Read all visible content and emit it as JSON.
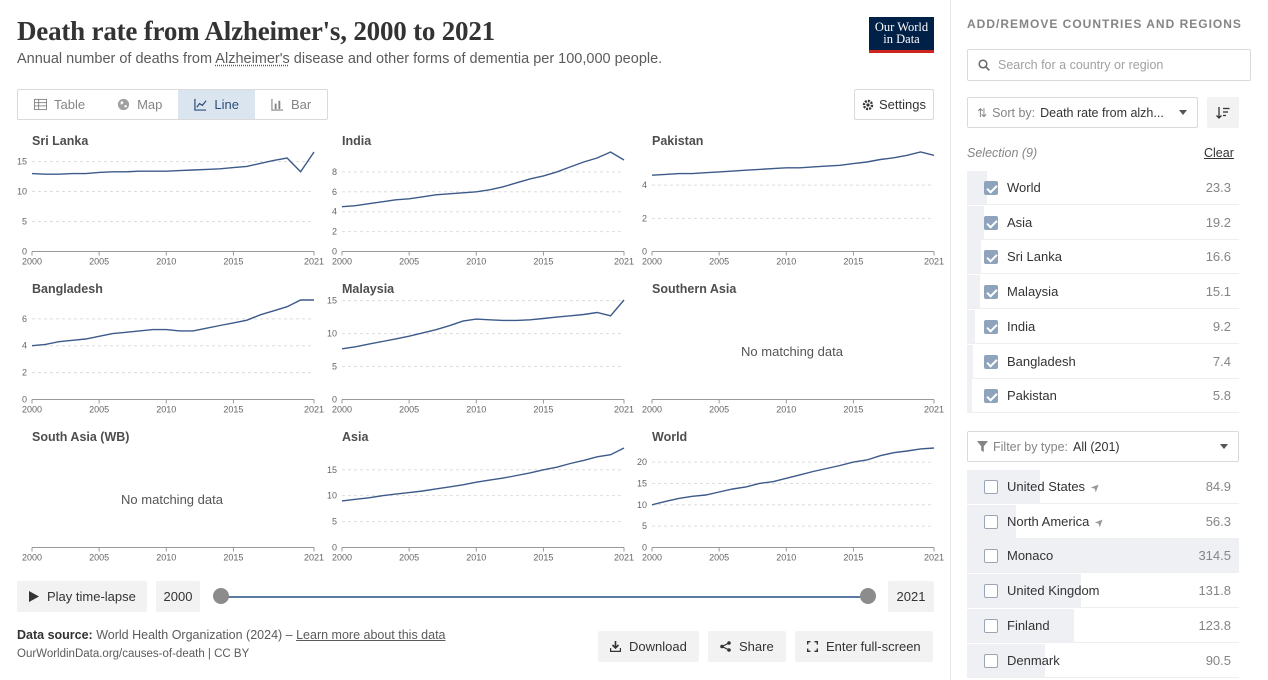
{
  "header": {
    "title": "Death rate from Alzheimer's, 2000 to 2021",
    "subtitle_pre": "Annual number of deaths from ",
    "subtitle_link": "Alzheimer's",
    "subtitle_post": " disease and other forms of dementia per 100,000 people.",
    "logo_line1": "Our World",
    "logo_line2": "in Data"
  },
  "tabs": [
    {
      "label": "Table",
      "icon": "table-icon"
    },
    {
      "label": "Map",
      "icon": "globe-icon"
    },
    {
      "label": "Line",
      "icon": "line-chart-icon",
      "active": true
    },
    {
      "label": "Bar",
      "icon": "bar-chart-icon"
    }
  ],
  "settings_label": "Settings",
  "no_data_text": "No matching data",
  "chart_data": [
    {
      "type": "line",
      "title": "Sri Lanka",
      "x": [
        2000,
        2001,
        2002,
        2003,
        2004,
        2005,
        2006,
        2007,
        2008,
        2009,
        2010,
        2011,
        2012,
        2013,
        2014,
        2015,
        2016,
        2017,
        2018,
        2019,
        2020,
        2021
      ],
      "values": [
        13.0,
        12.9,
        12.9,
        13.0,
        13.0,
        13.2,
        13.3,
        13.3,
        13.4,
        13.4,
        13.4,
        13.5,
        13.6,
        13.7,
        13.8,
        14.0,
        14.2,
        14.7,
        15.2,
        15.6,
        13.3,
        16.6
      ],
      "yticks": [
        0,
        5,
        10,
        15
      ],
      "ylim": [
        0,
        16.6
      ],
      "xticks": [
        2000,
        2005,
        2010,
        2015,
        2021
      ]
    },
    {
      "type": "line",
      "title": "India",
      "x": [
        2000,
        2001,
        2002,
        2003,
        2004,
        2005,
        2006,
        2007,
        2008,
        2009,
        2010,
        2011,
        2012,
        2013,
        2014,
        2015,
        2016,
        2017,
        2018,
        2019,
        2020,
        2021
      ],
      "values": [
        4.5,
        4.6,
        4.8,
        5.0,
        5.2,
        5.3,
        5.5,
        5.7,
        5.8,
        5.9,
        6.0,
        6.2,
        6.5,
        6.9,
        7.3,
        7.6,
        8.0,
        8.5,
        9.0,
        9.4,
        10.0,
        9.2
      ],
      "yticks": [
        0,
        2,
        4,
        6,
        8
      ],
      "ylim": [
        0,
        10.0
      ],
      "xticks": [
        2000,
        2005,
        2010,
        2015,
        2021
      ]
    },
    {
      "type": "line",
      "title": "Pakistan",
      "x": [
        2000,
        2001,
        2002,
        2003,
        2004,
        2005,
        2006,
        2007,
        2008,
        2009,
        2010,
        2011,
        2012,
        2013,
        2014,
        2015,
        2016,
        2017,
        2018,
        2019,
        2020,
        2021
      ],
      "values": [
        4.6,
        4.65,
        4.7,
        4.7,
        4.75,
        4.8,
        4.85,
        4.9,
        4.95,
        5.0,
        5.05,
        5.05,
        5.1,
        5.15,
        5.2,
        5.3,
        5.4,
        5.55,
        5.65,
        5.8,
        6.0,
        5.8
      ],
      "yticks": [
        0,
        2,
        4
      ],
      "ylim": [
        0,
        6.0
      ],
      "xticks": [
        2000,
        2005,
        2010,
        2015,
        2021
      ]
    },
    {
      "type": "line",
      "title": "Bangladesh",
      "x": [
        2000,
        2001,
        2002,
        2003,
        2004,
        2005,
        2006,
        2007,
        2008,
        2009,
        2010,
        2011,
        2012,
        2013,
        2014,
        2015,
        2016,
        2017,
        2018,
        2019,
        2020,
        2021
      ],
      "values": [
        4.0,
        4.1,
        4.3,
        4.4,
        4.5,
        4.7,
        4.9,
        5.0,
        5.1,
        5.2,
        5.2,
        5.1,
        5.1,
        5.3,
        5.5,
        5.7,
        5.9,
        6.3,
        6.6,
        6.9,
        7.4,
        7.4
      ],
      "yticks": [
        0,
        2,
        4,
        6
      ],
      "ylim": [
        0,
        7.4
      ],
      "xticks": [
        2000,
        2005,
        2010,
        2015,
        2021
      ]
    },
    {
      "type": "line",
      "title": "Malaysia",
      "x": [
        2000,
        2001,
        2002,
        2003,
        2004,
        2005,
        2006,
        2007,
        2008,
        2009,
        2010,
        2011,
        2012,
        2013,
        2014,
        2015,
        2016,
        2017,
        2018,
        2019,
        2020,
        2021
      ],
      "values": [
        7.7,
        8.0,
        8.4,
        8.8,
        9.2,
        9.6,
        10.1,
        10.6,
        11.2,
        11.9,
        12.2,
        12.1,
        12.0,
        12.0,
        12.1,
        12.3,
        12.5,
        12.7,
        12.9,
        13.2,
        12.7,
        15.1
      ],
      "yticks": [
        0,
        5,
        10,
        15
      ],
      "ylim": [
        0,
        15.1
      ],
      "xticks": [
        2000,
        2005,
        2010,
        2015,
        2021
      ]
    },
    {
      "type": "line",
      "title": "Southern Asia",
      "x": [],
      "values": [],
      "no_data": true,
      "xticks": [
        2000,
        2005,
        2010,
        2015,
        2021
      ]
    },
    {
      "type": "line",
      "title": "South Asia (WB)",
      "x": [],
      "values": [],
      "no_data": true,
      "xticks": [
        2000,
        2005,
        2010,
        2015,
        2021
      ]
    },
    {
      "type": "line",
      "title": "Asia",
      "x": [
        2000,
        2001,
        2002,
        2003,
        2004,
        2005,
        2006,
        2007,
        2008,
        2009,
        2010,
        2011,
        2012,
        2013,
        2014,
        2015,
        2016,
        2017,
        2018,
        2019,
        2020,
        2021
      ],
      "values": [
        9.0,
        9.3,
        9.6,
        10.0,
        10.3,
        10.6,
        10.9,
        11.3,
        11.7,
        12.1,
        12.6,
        13.0,
        13.4,
        13.9,
        14.4,
        15.0,
        15.5,
        16.2,
        16.8,
        17.5,
        17.9,
        19.2
      ],
      "yticks": [
        0,
        5,
        10,
        15
      ],
      "ylim": [
        0,
        19.2
      ],
      "xticks": [
        2000,
        2005,
        2010,
        2015,
        2021
      ]
    },
    {
      "type": "line",
      "title": "World",
      "x": [
        2000,
        2001,
        2002,
        2003,
        2004,
        2005,
        2006,
        2007,
        2008,
        2009,
        2010,
        2011,
        2012,
        2013,
        2014,
        2015,
        2016,
        2017,
        2018,
        2019,
        2020,
        2021
      ],
      "values": [
        10.0,
        10.8,
        11.5,
        12.0,
        12.3,
        13.0,
        13.7,
        14.2,
        15.0,
        15.4,
        16.2,
        17.0,
        17.8,
        18.5,
        19.2,
        20.0,
        20.5,
        21.5,
        22.2,
        22.6,
        23.1,
        23.3
      ],
      "yticks": [
        0,
        5,
        10,
        15,
        20
      ],
      "ylim": [
        0,
        23.3
      ],
      "xticks": [
        2000,
        2005,
        2010,
        2015,
        2021
      ]
    }
  ],
  "timeline": {
    "play_label": "Play time-lapse",
    "start_year": "2000",
    "end_year": "2021"
  },
  "footer": {
    "source_label": "Data source:",
    "source_text": " World Health Organization (2024) – ",
    "learn_more": "Learn more about this data",
    "url": "OurWorldinData.org/causes-of-death | CC BY",
    "download": "Download",
    "share": "Share",
    "fullscreen": "Enter full-screen"
  },
  "sidebar": {
    "heading": "ADD/REMOVE COUNTRIES AND REGIONS",
    "search_placeholder": "Search for a country or region",
    "sort_prefix": "Sort by:",
    "sort_value": "Death rate from alzh...",
    "selection_label": "Selection (9)",
    "clear_label": "Clear",
    "filter_prefix": "Filter by type:",
    "filter_value": "All (201)",
    "max_value": 314.5,
    "selected": [
      {
        "name": "World",
        "value": "23.3",
        "num": 23.3
      },
      {
        "name": "Asia",
        "value": "19.2",
        "num": 19.2
      },
      {
        "name": "Sri Lanka",
        "value": "16.6",
        "num": 16.6
      },
      {
        "name": "Malaysia",
        "value": "15.1",
        "num": 15.1
      },
      {
        "name": "India",
        "value": "9.2",
        "num": 9.2
      },
      {
        "name": "Bangladesh",
        "value": "7.4",
        "num": 7.4
      },
      {
        "name": "Pakistan",
        "value": "5.8",
        "num": 5.8
      }
    ],
    "available": [
      {
        "name": "United States",
        "value": "84.9",
        "num": 84.9,
        "nav": true
      },
      {
        "name": "North America",
        "value": "56.3",
        "num": 56.3,
        "nav": true
      },
      {
        "name": "Monaco",
        "value": "314.5",
        "num": 314.5
      },
      {
        "name": "United Kingdom",
        "value": "131.8",
        "num": 131.8
      },
      {
        "name": "Finland",
        "value": "123.8",
        "num": 123.8
      },
      {
        "name": "Denmark",
        "value": "90.5",
        "num": 90.5
      }
    ]
  }
}
